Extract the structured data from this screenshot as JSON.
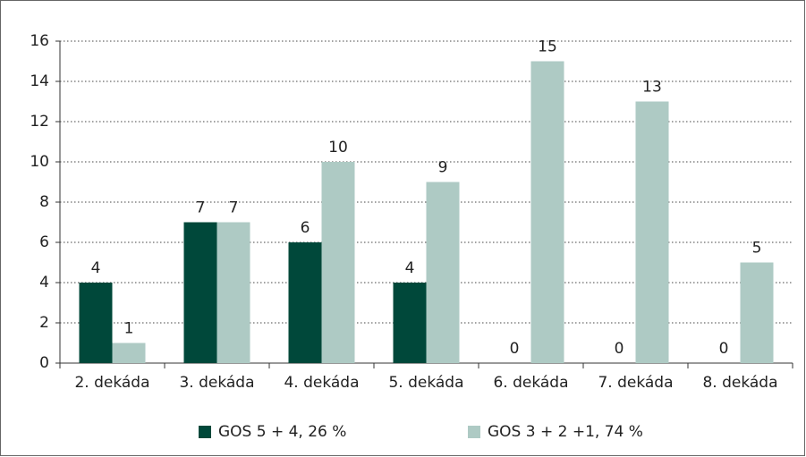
{
  "chart_data": {
    "type": "bar",
    "categories": [
      "2. dekáda",
      "3. dekáda",
      "4. dekáda",
      "5. dekáda",
      "6. dekáda",
      "7. dekáda",
      "8. dekáda"
    ],
    "series": [
      {
        "name": "GOS 5 + 4, 26 %",
        "color": "#00483a",
        "values": [
          4,
          7,
          6,
          4,
          0,
          0,
          0
        ]
      },
      {
        "name": "GOS 3 + 2 +1, 74 %",
        "color": "#aecac4",
        "values": [
          1,
          7,
          10,
          9,
          15,
          13,
          5
        ]
      }
    ],
    "ylim": [
      0,
      16
    ],
    "yticks": [
      0,
      2,
      4,
      6,
      8,
      10,
      12,
      14,
      16
    ],
    "grid": true,
    "legend": "bottom"
  }
}
